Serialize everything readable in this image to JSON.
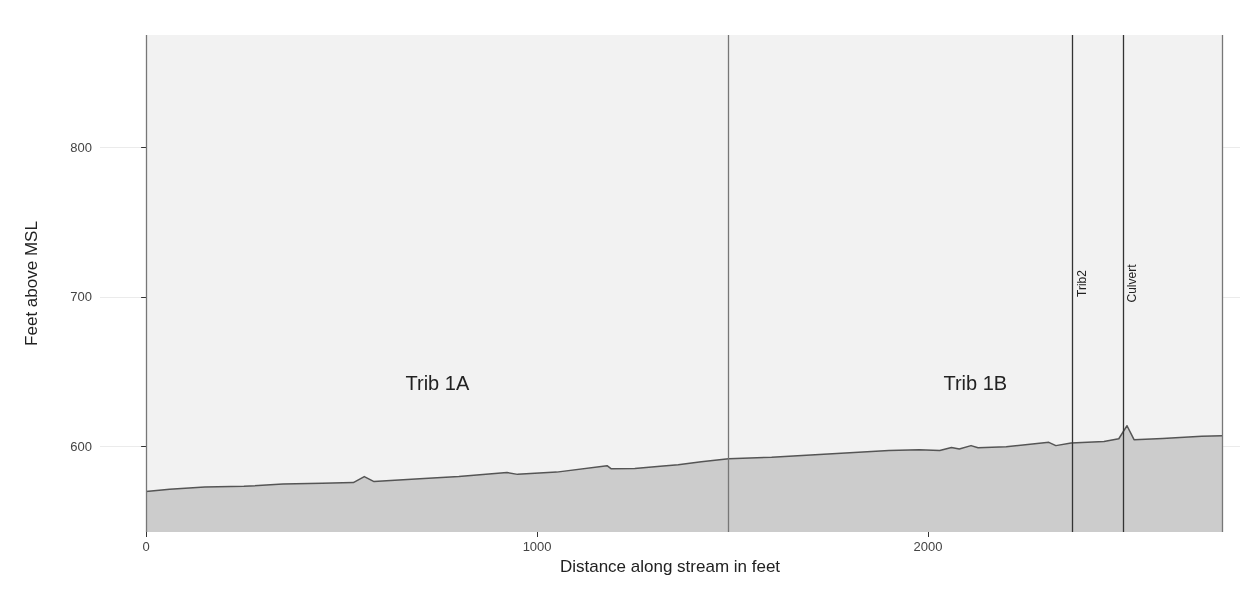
{
  "chart_data": {
    "type": "area",
    "xlabel": "Distance along stream in feet",
    "ylabel": "Feet above MSL",
    "x": [
      0,
      60,
      150,
      250,
      350,
      450,
      530,
      558,
      583,
      700,
      800,
      923,
      950,
      1050,
      1179,
      1189,
      1250,
      1315,
      1361,
      1420,
      1490,
      1600,
      1700,
      1800,
      1900,
      1977,
      2030,
      2060,
      2080,
      2110,
      2128,
      2200,
      2309,
      2327,
      2366,
      2450,
      2488,
      2509,
      2527,
      2600,
      2700,
      2752
    ],
    "series": [
      {
        "color": "#cccccc",
        "values": [
          570,
          571.5,
          573,
          573.5,
          575,
          575.5,
          576,
          580,
          576.7,
          578.5,
          580,
          582.7,
          581.5,
          583,
          587.3,
          585.3,
          585.5,
          586.9,
          588,
          590,
          592,
          593,
          594.5,
          596,
          597.5,
          598,
          597.5,
          599.5,
          598.5,
          600.7,
          599.3,
          600,
          602.9,
          600.7,
          602.4,
          603.5,
          605.3,
          614,
          604.7,
          605.5,
          607,
          607.3
        ]
      }
    ],
    "xlim": [
      -118,
      2798
    ],
    "ylim": [
      543,
      875
    ],
    "xticks": [
      0,
      1000,
      2000
    ],
    "yticks": [
      600,
      700,
      800
    ],
    "grid": true,
    "bands": [
      {
        "axis": "x",
        "from": 0,
        "to": 2752,
        "color": "#f2f2f2"
      }
    ],
    "ref_lines": [
      {
        "axis": "x",
        "value": 0,
        "color": "#777777"
      },
      {
        "axis": "x",
        "value": 1490,
        "color": "#777777"
      },
      {
        "axis": "x",
        "value": 2370,
        "label": "Trib2",
        "color": "#333333"
      },
      {
        "axis": "x",
        "value": 2500,
        "label": "Culvert",
        "color": "#333333"
      },
      {
        "axis": "x",
        "value": 2752,
        "color": "#777777"
      }
    ],
    "annotations": [
      "Trib 1A",
      "Trib 1B"
    ]
  }
}
